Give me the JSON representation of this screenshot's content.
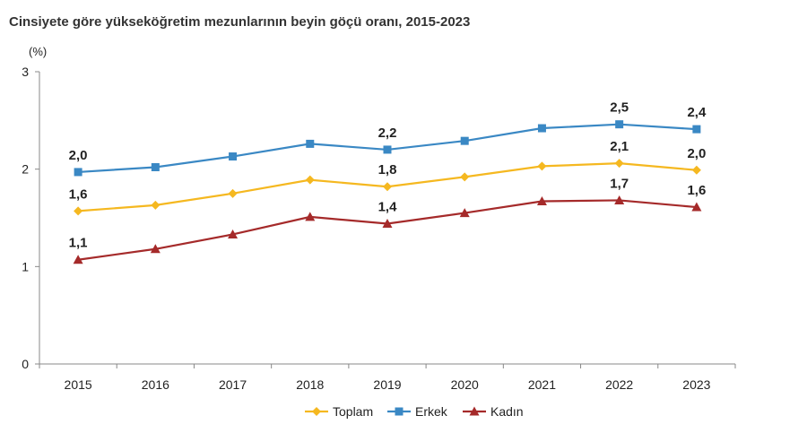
{
  "chart_data": {
    "type": "line",
    "title": "Cinsiyete göre yükseköğretim mezunlarının beyin göçü oranı, 2015-2023",
    "ylabel": "(%)",
    "xlabel": "",
    "categories": [
      "2015",
      "2016",
      "2017",
      "2018",
      "2019",
      "2020",
      "2021",
      "2022",
      "2023"
    ],
    "ylim": [
      0,
      3
    ],
    "yticks": [
      "0",
      "1",
      "2",
      "3"
    ],
    "legend_position": "bottom",
    "series": [
      {
        "name": "Toplam",
        "color": "#f5b820",
        "marker": "diamond",
        "values": [
          1.57,
          1.63,
          1.75,
          1.89,
          1.82,
          1.92,
          2.03,
          2.06,
          1.99
        ],
        "labels": [
          {
            "index": 0,
            "text": "1,6"
          },
          {
            "index": 4,
            "text": "1,8"
          },
          {
            "index": 7,
            "text": "2,1"
          },
          {
            "index": 8,
            "text": "2,0"
          }
        ]
      },
      {
        "name": "Erkek",
        "color": "#3a88c4",
        "marker": "square",
        "values": [
          1.97,
          2.02,
          2.13,
          2.26,
          2.2,
          2.29,
          2.42,
          2.46,
          2.41
        ],
        "labels": [
          {
            "index": 0,
            "text": "2,0"
          },
          {
            "index": 4,
            "text": "2,2"
          },
          {
            "index": 7,
            "text": "2,5"
          },
          {
            "index": 8,
            "text": "2,4"
          }
        ]
      },
      {
        "name": "Kadın",
        "color": "#a52a2a",
        "marker": "triangle",
        "values": [
          1.07,
          1.18,
          1.33,
          1.51,
          1.44,
          1.55,
          1.67,
          1.68,
          1.61
        ],
        "labels": [
          {
            "index": 0,
            "text": "1,1"
          },
          {
            "index": 4,
            "text": "1,4"
          },
          {
            "index": 7,
            "text": "1,7"
          },
          {
            "index": 8,
            "text": "1,6"
          }
        ]
      }
    ]
  }
}
